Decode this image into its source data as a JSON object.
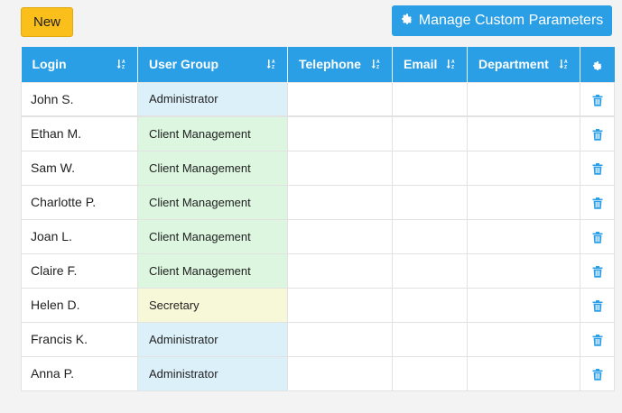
{
  "toolbar": {
    "new_label": "New",
    "manage_label": "Manage Custom Parameters"
  },
  "table": {
    "headers": [
      "Login",
      "User Group",
      "Telephone",
      "Email",
      "Department"
    ],
    "rows": [
      {
        "login": "John S.",
        "group": "Administrator",
        "telephone": "",
        "email": "",
        "department": ""
      },
      {
        "login": "Ethan M.",
        "group": "Client Management",
        "telephone": "",
        "email": "",
        "department": ""
      },
      {
        "login": "Sam W.",
        "group": "Client Management",
        "telephone": "",
        "email": "",
        "department": ""
      },
      {
        "login": "Charlotte P.",
        "group": "Client Management",
        "telephone": "",
        "email": "",
        "department": ""
      },
      {
        "login": "Joan L.",
        "group": "Client Management",
        "telephone": "",
        "email": "",
        "department": ""
      },
      {
        "login": "Claire F.",
        "group": "Client Management",
        "telephone": "",
        "email": "",
        "department": ""
      },
      {
        "login": "Helen D.",
        "group": "Secretary",
        "telephone": "",
        "email": "",
        "department": ""
      },
      {
        "login": "Francis K.",
        "group": "Administrator",
        "telephone": "",
        "email": "",
        "department": ""
      },
      {
        "login": "Anna P.",
        "group": "Administrator",
        "telephone": "",
        "email": "",
        "department": ""
      }
    ]
  },
  "colors": {
    "accent": "#2b9fe6",
    "new_button": "#fbbf1c",
    "administrator_bg": "#dcf0fa",
    "client_management_bg": "#dcf6df",
    "secretary_bg": "#f7f8d8"
  },
  "icons": {
    "manage": "gear-icon",
    "settings_column": "gear-icon",
    "sort": "sort-icon",
    "row_action": "trash-icon"
  }
}
